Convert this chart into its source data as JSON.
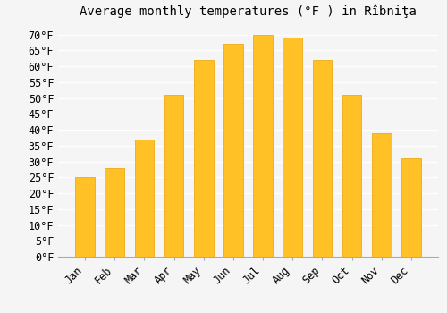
{
  "title": "Average monthly temperatures (°F ) in Rîbniţa",
  "months": [
    "Jan",
    "Feb",
    "Mar",
    "Apr",
    "May",
    "Jun",
    "Jul",
    "Aug",
    "Sep",
    "Oct",
    "Nov",
    "Dec"
  ],
  "values": [
    25,
    28,
    37,
    51,
    62,
    67,
    70,
    69,
    62,
    51,
    39,
    31
  ],
  "bar_color": "#FFC125",
  "bar_edge_color": "#E8A000",
  "ylim": [
    0,
    73
  ],
  "yticks": [
    0,
    5,
    10,
    15,
    20,
    25,
    30,
    35,
    40,
    45,
    50,
    55,
    60,
    65,
    70
  ],
  "ytick_labels": [
    "0°F",
    "5°F",
    "10°F",
    "15°F",
    "20°F",
    "25°F",
    "30°F",
    "35°F",
    "40°F",
    "45°F",
    "50°F",
    "55°F",
    "60°F",
    "65°F",
    "70°F"
  ],
  "background_color": "#f5f5f5",
  "grid_color": "#ffffff",
  "title_fontsize": 10,
  "tick_fontsize": 8.5
}
